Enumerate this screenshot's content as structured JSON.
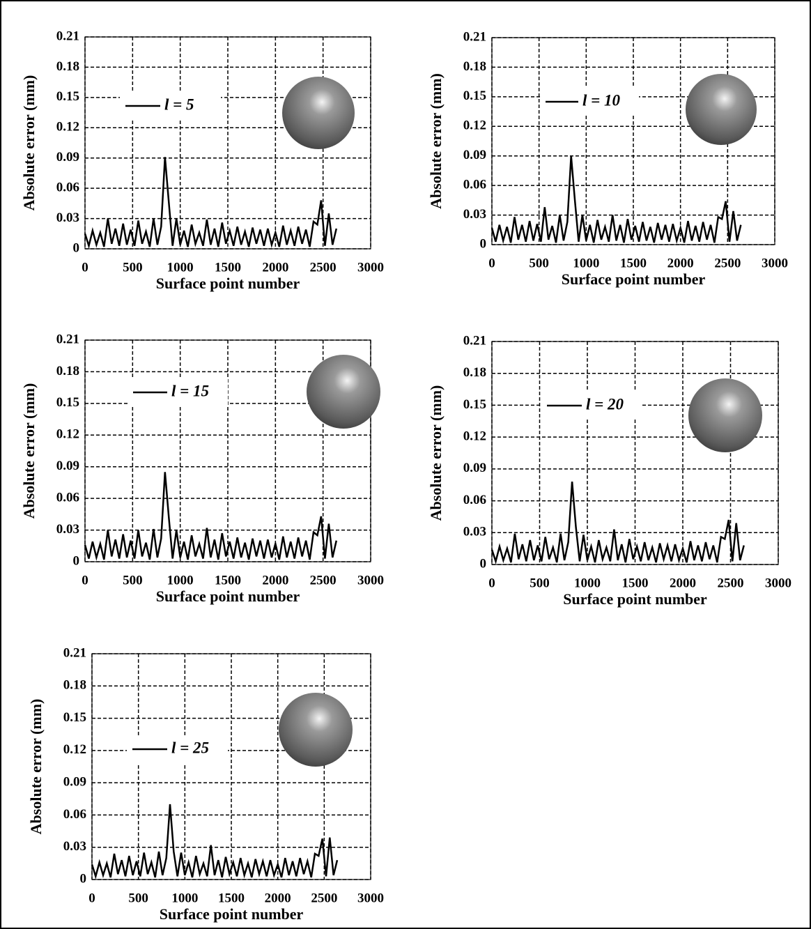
{
  "chart_data": [
    {
      "type": "line",
      "xlabel": "Surface point number",
      "ylabel": "Absolute error (mm)",
      "xlim": [
        0,
        3000
      ],
      "xticks": [
        0,
        500,
        1000,
        1500,
        2000,
        2500,
        3000
      ],
      "ylim": [
        0,
        0.21
      ],
      "yticks": [
        0,
        0.03,
        0.06,
        0.09,
        0.12,
        0.15,
        0.18,
        0.21
      ],
      "grid": true,
      "x": [
        0,
        40,
        80,
        120,
        160,
        200,
        240,
        280,
        320,
        360,
        400,
        440,
        480,
        520,
        560,
        600,
        640,
        680,
        720,
        760,
        800,
        840,
        880,
        920,
        960,
        1000,
        1040,
        1080,
        1120,
        1160,
        1200,
        1240,
        1280,
        1320,
        1360,
        1400,
        1440,
        1480,
        1520,
        1560,
        1600,
        1640,
        1680,
        1720,
        1760,
        1800,
        1840,
        1880,
        1920,
        1960,
        2000,
        2040,
        2080,
        2120,
        2160,
        2200,
        2240,
        2280,
        2320,
        2360,
        2400,
        2440,
        2480,
        2520,
        2560,
        2600,
        2640
      ],
      "series": [
        {
          "name": "l = 5",
          "color": "#000000",
          "values": [
            0.015,
            0.003,
            0.018,
            0.004,
            0.016,
            0.002,
            0.03,
            0.005,
            0.02,
            0.003,
            0.025,
            0.004,
            0.019,
            0.003,
            0.028,
            0.005,
            0.017,
            0.002,
            0.03,
            0.004,
            0.022,
            0.091,
            0.046,
            0.003,
            0.03,
            0.004,
            0.018,
            0.002,
            0.024,
            0.005,
            0.016,
            0.003,
            0.029,
            0.004,
            0.02,
            0.002,
            0.026,
            0.005,
            0.018,
            0.003,
            0.022,
            0.004,
            0.017,
            0.002,
            0.021,
            0.005,
            0.019,
            0.003,
            0.02,
            0.004,
            0.016,
            0.002,
            0.023,
            0.004,
            0.018,
            0.003,
            0.022,
            0.005,
            0.019,
            0.002,
            0.027,
            0.024,
            0.048,
            0.003,
            0.035,
            0.004,
            0.02
          ]
        }
      ]
    },
    {
      "type": "line",
      "xlabel": "Surface point number",
      "ylabel": "Absolute error (mm)",
      "xlim": [
        0,
        3000
      ],
      "xticks": [
        0,
        500,
        1000,
        1500,
        2000,
        2500,
        3000
      ],
      "ylim": [
        0,
        0.21
      ],
      "yticks": [
        0,
        0.03,
        0.06,
        0.09,
        0.12,
        0.15,
        0.18,
        0.21
      ],
      "grid": true,
      "x": [
        0,
        40,
        80,
        120,
        160,
        200,
        240,
        280,
        320,
        360,
        400,
        440,
        480,
        520,
        560,
        600,
        640,
        680,
        720,
        760,
        800,
        840,
        880,
        920,
        960,
        1000,
        1040,
        1080,
        1120,
        1160,
        1200,
        1240,
        1280,
        1320,
        1360,
        1400,
        1440,
        1480,
        1520,
        1560,
        1600,
        1640,
        1680,
        1720,
        1760,
        1800,
        1840,
        1880,
        1920,
        1960,
        2000,
        2040,
        2080,
        2120,
        2160,
        2200,
        2240,
        2280,
        2320,
        2360,
        2400,
        2440,
        2480,
        2520,
        2560,
        2600,
        2640
      ],
      "series": [
        {
          "name": "l = 10",
          "color": "#000000",
          "values": [
            0.017,
            0.003,
            0.02,
            0.004,
            0.018,
            0.002,
            0.028,
            0.005,
            0.02,
            0.003,
            0.024,
            0.004,
            0.021,
            0.003,
            0.038,
            0.005,
            0.019,
            0.002,
            0.03,
            0.004,
            0.023,
            0.09,
            0.045,
            0.003,
            0.03,
            0.004,
            0.02,
            0.002,
            0.025,
            0.005,
            0.018,
            0.003,
            0.03,
            0.004,
            0.02,
            0.002,
            0.026,
            0.005,
            0.019,
            0.003,
            0.023,
            0.004,
            0.018,
            0.002,
            0.022,
            0.005,
            0.02,
            0.003,
            0.021,
            0.004,
            0.017,
            0.002,
            0.024,
            0.004,
            0.019,
            0.003,
            0.023,
            0.005,
            0.02,
            0.002,
            0.028,
            0.026,
            0.044,
            0.003,
            0.034,
            0.004,
            0.02
          ]
        }
      ]
    },
    {
      "type": "line",
      "xlabel": "Surface point number",
      "ylabel": "Absolute error (mm)",
      "xlim": [
        0,
        3000
      ],
      "xticks": [
        0,
        500,
        1000,
        1500,
        2000,
        2500,
        3000
      ],
      "ylim": [
        0,
        0.21
      ],
      "yticks": [
        0,
        0.03,
        0.06,
        0.09,
        0.12,
        0.15,
        0.18,
        0.21
      ],
      "grid": true,
      "x": [
        0,
        40,
        80,
        120,
        160,
        200,
        240,
        280,
        320,
        360,
        400,
        440,
        480,
        520,
        560,
        600,
        640,
        680,
        720,
        760,
        800,
        840,
        880,
        920,
        960,
        1000,
        1040,
        1080,
        1120,
        1160,
        1200,
        1240,
        1280,
        1320,
        1360,
        1400,
        1440,
        1480,
        1520,
        1560,
        1600,
        1640,
        1680,
        1720,
        1760,
        1800,
        1840,
        1880,
        1920,
        1960,
        2000,
        2040,
        2080,
        2120,
        2160,
        2200,
        2240,
        2280,
        2320,
        2360,
        2400,
        2440,
        2480,
        2520,
        2560,
        2600,
        2640
      ],
      "series": [
        {
          "name": "l = 15",
          "color": "#000000",
          "values": [
            0.016,
            0.003,
            0.019,
            0.004,
            0.017,
            0.002,
            0.03,
            0.005,
            0.021,
            0.003,
            0.026,
            0.004,
            0.02,
            0.003,
            0.03,
            0.005,
            0.018,
            0.002,
            0.031,
            0.004,
            0.022,
            0.085,
            0.042,
            0.003,
            0.03,
            0.004,
            0.019,
            0.002,
            0.025,
            0.005,
            0.017,
            0.003,
            0.032,
            0.004,
            0.021,
            0.002,
            0.027,
            0.005,
            0.019,
            0.003,
            0.023,
            0.004,
            0.018,
            0.002,
            0.022,
            0.005,
            0.02,
            0.003,
            0.021,
            0.004,
            0.017,
            0.002,
            0.024,
            0.004,
            0.019,
            0.003,
            0.023,
            0.005,
            0.02,
            0.002,
            0.028,
            0.025,
            0.043,
            0.003,
            0.036,
            0.004,
            0.02
          ]
        }
      ]
    },
    {
      "type": "line",
      "xlabel": "Surface point number",
      "ylabel": "Absolute error (mm)",
      "xlim": [
        0,
        3000
      ],
      "xticks": [
        0,
        500,
        1000,
        1500,
        2000,
        2500,
        3000
      ],
      "ylim": [
        0,
        0.21
      ],
      "yticks": [
        0,
        0.03,
        0.06,
        0.09,
        0.12,
        0.15,
        0.18,
        0.21
      ],
      "grid": true,
      "x": [
        0,
        40,
        80,
        120,
        160,
        200,
        240,
        280,
        320,
        360,
        400,
        440,
        480,
        520,
        560,
        600,
        640,
        680,
        720,
        760,
        800,
        840,
        880,
        920,
        960,
        1000,
        1040,
        1080,
        1120,
        1160,
        1200,
        1240,
        1280,
        1320,
        1360,
        1400,
        1440,
        1480,
        1520,
        1560,
        1600,
        1640,
        1680,
        1720,
        1760,
        1800,
        1840,
        1880,
        1920,
        1960,
        2000,
        2040,
        2080,
        2120,
        2160,
        2200,
        2240,
        2280,
        2320,
        2360,
        2400,
        2440,
        2480,
        2520,
        2560,
        2600,
        2640
      ],
      "series": [
        {
          "name": "l = 20",
          "color": "#000000",
          "values": [
            0.014,
            0.003,
            0.017,
            0.004,
            0.015,
            0.002,
            0.029,
            0.005,
            0.019,
            0.003,
            0.023,
            0.004,
            0.018,
            0.003,
            0.026,
            0.005,
            0.016,
            0.002,
            0.029,
            0.004,
            0.021,
            0.078,
            0.035,
            0.003,
            0.028,
            0.004,
            0.017,
            0.002,
            0.023,
            0.005,
            0.016,
            0.003,
            0.033,
            0.004,
            0.019,
            0.002,
            0.024,
            0.005,
            0.017,
            0.003,
            0.021,
            0.004,
            0.016,
            0.002,
            0.02,
            0.005,
            0.018,
            0.003,
            0.019,
            0.004,
            0.015,
            0.002,
            0.022,
            0.004,
            0.018,
            0.003,
            0.021,
            0.005,
            0.018,
            0.002,
            0.026,
            0.024,
            0.042,
            0.003,
            0.039,
            0.004,
            0.018
          ]
        }
      ]
    },
    {
      "type": "line",
      "xlabel": "Surface point number",
      "ylabel": "Absolute error (mm)",
      "xlim": [
        0,
        3000
      ],
      "xticks": [
        0,
        500,
        1000,
        1500,
        2000,
        2500,
        3000
      ],
      "ylim": [
        0,
        0.21
      ],
      "yticks": [
        0,
        0.03,
        0.06,
        0.09,
        0.12,
        0.15,
        0.18,
        0.21
      ],
      "grid": true,
      "x": [
        0,
        40,
        80,
        120,
        160,
        200,
        240,
        280,
        320,
        360,
        400,
        440,
        480,
        520,
        560,
        600,
        640,
        680,
        720,
        760,
        800,
        840,
        880,
        920,
        960,
        1000,
        1040,
        1080,
        1120,
        1160,
        1200,
        1240,
        1280,
        1320,
        1360,
        1400,
        1440,
        1480,
        1520,
        1560,
        1600,
        1640,
        1680,
        1720,
        1760,
        1800,
        1840,
        1880,
        1920,
        1960,
        2000,
        2040,
        2080,
        2120,
        2160,
        2200,
        2240,
        2280,
        2320,
        2360,
        2400,
        2440,
        2480,
        2520,
        2560,
        2600,
        2640
      ],
      "series": [
        {
          "name": "l = 25",
          "color": "#000000",
          "values": [
            0.014,
            0.003,
            0.016,
            0.004,
            0.015,
            0.002,
            0.024,
            0.005,
            0.018,
            0.003,
            0.022,
            0.004,
            0.017,
            0.003,
            0.025,
            0.005,
            0.016,
            0.002,
            0.026,
            0.004,
            0.02,
            0.07,
            0.026,
            0.003,
            0.025,
            0.004,
            0.016,
            0.002,
            0.022,
            0.005,
            0.015,
            0.003,
            0.032,
            0.004,
            0.018,
            0.002,
            0.021,
            0.005,
            0.016,
            0.003,
            0.02,
            0.004,
            0.015,
            0.002,
            0.019,
            0.005,
            0.017,
            0.003,
            0.018,
            0.004,
            0.014,
            0.002,
            0.02,
            0.004,
            0.017,
            0.003,
            0.02,
            0.005,
            0.017,
            0.002,
            0.024,
            0.022,
            0.038,
            0.003,
            0.039,
            0.004,
            0.018
          ]
        }
      ]
    }
  ]
}
